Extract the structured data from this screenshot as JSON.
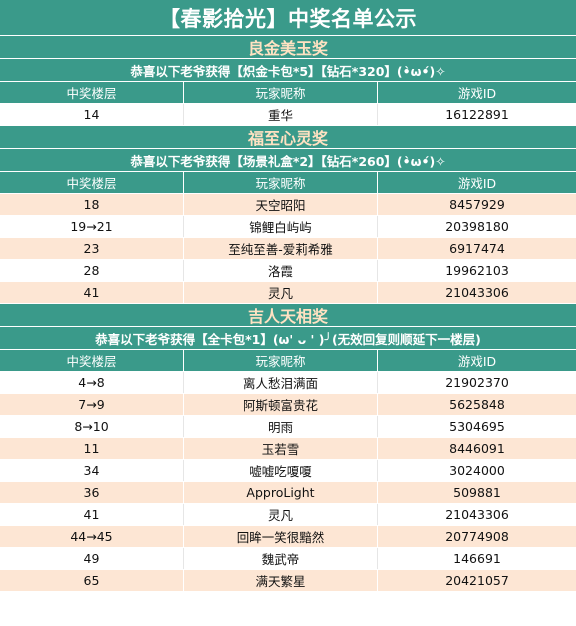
{
  "title": "【春影拾光】中奖名单公示",
  "columns": [
    "中奖楼层",
    "玩家昵称",
    "游戏ID"
  ],
  "sections": [
    {
      "prize": "良金美玉奖",
      "note": "恭喜以下老爷获得【炽金卡包*5】【钻石*320】(•̀ω•́)✧",
      "rows": [
        {
          "floor": "14",
          "name": "重华",
          "id": "16122891"
        }
      ]
    },
    {
      "prize": "福至心灵奖",
      "note": "恭喜以下老爷获得【场景礼盒*2】【钻石*260】(•̀ω•́)✧",
      "rows": [
        {
          "floor": "18",
          "name": "天空昭阳",
          "id": "8457929"
        },
        {
          "floor": "19→21",
          "name": "锦鲤白屿屿",
          "id": "20398180"
        },
        {
          "floor": "23",
          "name": "至纯至善-爱莉希雅",
          "id": "6917474"
        },
        {
          "floor": "28",
          "name": "洛霞",
          "id": "19962103"
        },
        {
          "floor": "41",
          "name": "灵凡",
          "id": "21043306"
        }
      ]
    },
    {
      "prize": "吉人天相奖",
      "note": "恭喜以下老爷获得【全卡包*1】(ω' ᴗ ' )╯(无效回复则顺延下一楼层)",
      "rows": [
        {
          "floor": "4→8",
          "name": "离人愁泪满面",
          "id": "21902370"
        },
        {
          "floor": "7→9",
          "name": "阿斯顿富贵花",
          "id": "5625848"
        },
        {
          "floor": "8→10",
          "name": "明雨",
          "id": "5304695"
        },
        {
          "floor": "11",
          "name": "玉若雪",
          "id": "8446091"
        },
        {
          "floor": "34",
          "name": "嘘嘘吃嗄嗄",
          "id": "3024000"
        },
        {
          "floor": "36",
          "name": "ApproLight",
          "id": "509881"
        },
        {
          "floor": "41",
          "name": "灵凡",
          "id": "21043306"
        },
        {
          "floor": "44→45",
          "name": "回眸一笑很黯然",
          "id": "20774908"
        },
        {
          "floor": "49",
          "name": "魏武帝",
          "id": "146691"
        },
        {
          "floor": "65",
          "name": "满天繁星",
          "id": "20421057"
        }
      ]
    }
  ]
}
